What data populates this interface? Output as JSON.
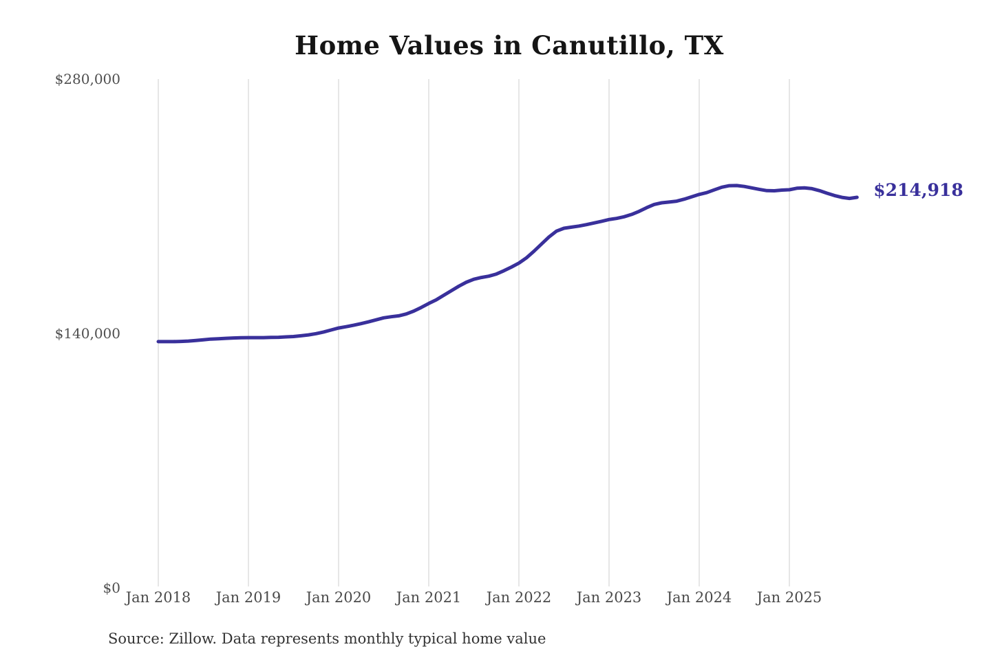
{
  "source_note": "Source: Zillow. Data represents monthly typical home value",
  "colors": {
    "line": "#39309b",
    "grid": "#cccccc",
    "axis_text": "#4f4f4f",
    "title_text": "#151515",
    "end_label_text": "#39309b"
  },
  "chart_data": {
    "type": "line",
    "title": "Home Values in Canutillo, TX",
    "xlabel": "",
    "ylabel": "",
    "x_frequency": "monthly",
    "x_start": "Jan 2018",
    "x_end": "Oct 2025",
    "x_tick_labels": [
      "Jan 2018",
      "Jan 2019",
      "Jan 2020",
      "Jan 2021",
      "Jan 2022",
      "Jan 2023",
      "Jan 2024",
      "Jan 2025"
    ],
    "ylim": [
      0,
      280000
    ],
    "y_ticks": [
      {
        "value": 280000,
        "label": "$280,000"
      },
      {
        "value": 140000,
        "label": "$140,000"
      },
      {
        "value": 0,
        "label": "$0"
      }
    ],
    "grid": "vertical",
    "legend": "none",
    "series": [
      {
        "name": "Typical home value",
        "values": [
          135500,
          135500,
          135500,
          135600,
          135800,
          136100,
          136500,
          136900,
          137100,
          137300,
          137500,
          137600,
          137700,
          137700,
          137700,
          137800,
          137900,
          138100,
          138300,
          138700,
          139200,
          139900,
          140800,
          141900,
          143000,
          143700,
          144500,
          145400,
          146400,
          147500,
          148600,
          149200,
          149700,
          150700,
          152300,
          154300,
          156500,
          158500,
          161000,
          163500,
          166000,
          168200,
          169800,
          170800,
          171500,
          172700,
          174500,
          176500,
          178700,
          181600,
          185200,
          189200,
          193100,
          196300,
          197900,
          198500,
          199100,
          199900,
          200800,
          201700,
          202700,
          203300,
          204200,
          205500,
          207200,
          209200,
          211000,
          211900,
          212300,
          212800,
          213900,
          215200,
          216500,
          217500,
          219000,
          220500,
          221300,
          221400,
          220900,
          220100,
          219300,
          218600,
          218500,
          218900,
          219100,
          219900,
          220100,
          219700,
          218600,
          217200,
          215900,
          214900,
          214300,
          214918
        ]
      }
    ],
    "last_value": 214918,
    "last_value_label": "$214,918"
  }
}
